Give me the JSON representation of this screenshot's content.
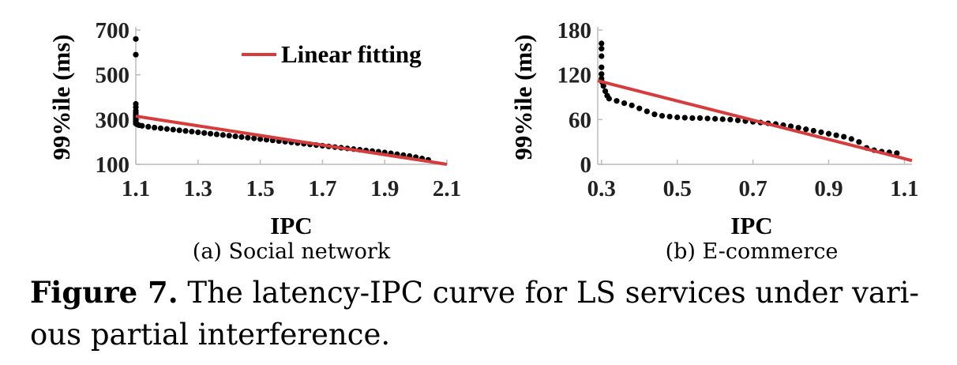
{
  "caption": {
    "label": "Figure 7.",
    "text": " The latency-IPC curve for LS services under vari-ous partial interference."
  },
  "chart_data": [
    {
      "type": "scatter",
      "subcaption": "(a)  Social network",
      "xlabel": "IPC",
      "ylabel": "99%ile (ms)",
      "xlim": [
        1.1,
        2.1
      ],
      "ylim": [
        100,
        700
      ],
      "xticks": [
        "1.1",
        "1.3",
        "1.5",
        "1.7",
        "1.9",
        "2.1"
      ],
      "yticks": [
        "100",
        "300",
        "500",
        "700"
      ],
      "legend": {
        "label": "Linear fitting",
        "position": "top-right",
        "color": "#d63c3c"
      },
      "fit_line": [
        [
          1.1,
          315
        ],
        [
          2.1,
          100
        ]
      ],
      "point_color": "#000000",
      "points": [
        [
          1.1,
          660
        ],
        [
          1.1,
          590
        ],
        [
          1.1,
          370
        ],
        [
          1.1,
          355
        ],
        [
          1.1,
          340
        ],
        [
          1.1,
          330
        ],
        [
          1.1,
          320
        ],
        [
          1.1,
          312
        ],
        [
          1.1,
          305
        ],
        [
          1.1,
          298
        ],
        [
          1.1,
          292
        ],
        [
          1.1,
          287
        ],
        [
          1.1,
          282
        ],
        [
          1.105,
          278
        ],
        [
          1.11,
          275
        ],
        [
          1.12,
          272
        ],
        [
          1.14,
          268
        ],
        [
          1.16,
          264
        ],
        [
          1.18,
          261
        ],
        [
          1.2,
          258
        ],
        [
          1.22,
          255
        ],
        [
          1.24,
          252
        ],
        [
          1.26,
          249
        ],
        [
          1.28,
          246
        ],
        [
          1.3,
          243
        ],
        [
          1.32,
          240
        ],
        [
          1.34,
          237
        ],
        [
          1.36,
          234
        ],
        [
          1.38,
          231
        ],
        [
          1.4,
          228
        ],
        [
          1.42,
          225
        ],
        [
          1.44,
          222
        ],
        [
          1.46,
          219
        ],
        [
          1.48,
          216
        ],
        [
          1.5,
          213
        ],
        [
          1.52,
          210
        ],
        [
          1.54,
          207
        ],
        [
          1.56,
          204
        ],
        [
          1.58,
          201
        ],
        [
          1.6,
          198
        ],
        [
          1.62,
          195
        ],
        [
          1.64,
          192
        ],
        [
          1.66,
          189
        ],
        [
          1.68,
          186
        ],
        [
          1.7,
          183
        ],
        [
          1.72,
          180
        ],
        [
          1.74,
          177
        ],
        [
          1.76,
          174
        ],
        [
          1.78,
          171
        ],
        [
          1.8,
          168
        ],
        [
          1.82,
          165
        ],
        [
          1.84,
          162
        ],
        [
          1.86,
          159
        ],
        [
          1.88,
          156
        ],
        [
          1.9,
          153
        ],
        [
          1.92,
          149
        ],
        [
          1.94,
          145
        ],
        [
          1.96,
          141
        ],
        [
          1.98,
          137
        ],
        [
          2.0,
          132
        ],
        [
          2.02,
          126
        ],
        [
          2.04,
          120
        ]
      ]
    },
    {
      "type": "scatter",
      "subcaption": "(b)  E-commerce",
      "xlabel": "IPC",
      "ylabel": "99%ile (ms)",
      "xlim": [
        0.29,
        1.12
      ],
      "ylim": [
        0,
        180
      ],
      "xticks": [
        "0.3",
        "0.5",
        "0.7",
        "0.9",
        "1.1"
      ],
      "yticks": [
        "0",
        "60",
        "120",
        "180"
      ],
      "fit_line": [
        [
          0.29,
          112
        ],
        [
          1.12,
          5
        ]
      ],
      "line_color": "#d63c3c",
      "point_color": "#000000",
      "points": [
        [
          0.3,
          162
        ],
        [
          0.3,
          155
        ],
        [
          0.3,
          145
        ],
        [
          0.3,
          130
        ],
        [
          0.3,
          121
        ],
        [
          0.3,
          115
        ],
        [
          0.302,
          110
        ],
        [
          0.305,
          105
        ],
        [
          0.31,
          98
        ],
        [
          0.315,
          92
        ],
        [
          0.32,
          88
        ],
        [
          0.34,
          85
        ],
        [
          0.36,
          82
        ],
        [
          0.38,
          79
        ],
        [
          0.4,
          75
        ],
        [
          0.42,
          71
        ],
        [
          0.44,
          67
        ],
        [
          0.46,
          65
        ],
        [
          0.48,
          64
        ],
        [
          0.5,
          63
        ],
        [
          0.52,
          62.5
        ],
        [
          0.54,
          62
        ],
        [
          0.56,
          62
        ],
        [
          0.58,
          61.5
        ],
        [
          0.6,
          61
        ],
        [
          0.62,
          60.5
        ],
        [
          0.64,
          60
        ],
        [
          0.66,
          59
        ],
        [
          0.68,
          58
        ],
        [
          0.7,
          57
        ],
        [
          0.72,
          56
        ],
        [
          0.74,
          55
        ],
        [
          0.76,
          54
        ],
        [
          0.78,
          52.5
        ],
        [
          0.8,
          51
        ],
        [
          0.82,
          49
        ],
        [
          0.84,
          47
        ],
        [
          0.86,
          45
        ],
        [
          0.88,
          43
        ],
        [
          0.9,
          41
        ],
        [
          0.92,
          39
        ],
        [
          0.94,
          37
        ],
        [
          0.96,
          34
        ],
        [
          0.98,
          30
        ],
        [
          1.0,
          22
        ],
        [
          1.02,
          19
        ],
        [
          1.04,
          17
        ],
        [
          1.06,
          16
        ],
        [
          1.08,
          15
        ]
      ]
    }
  ]
}
